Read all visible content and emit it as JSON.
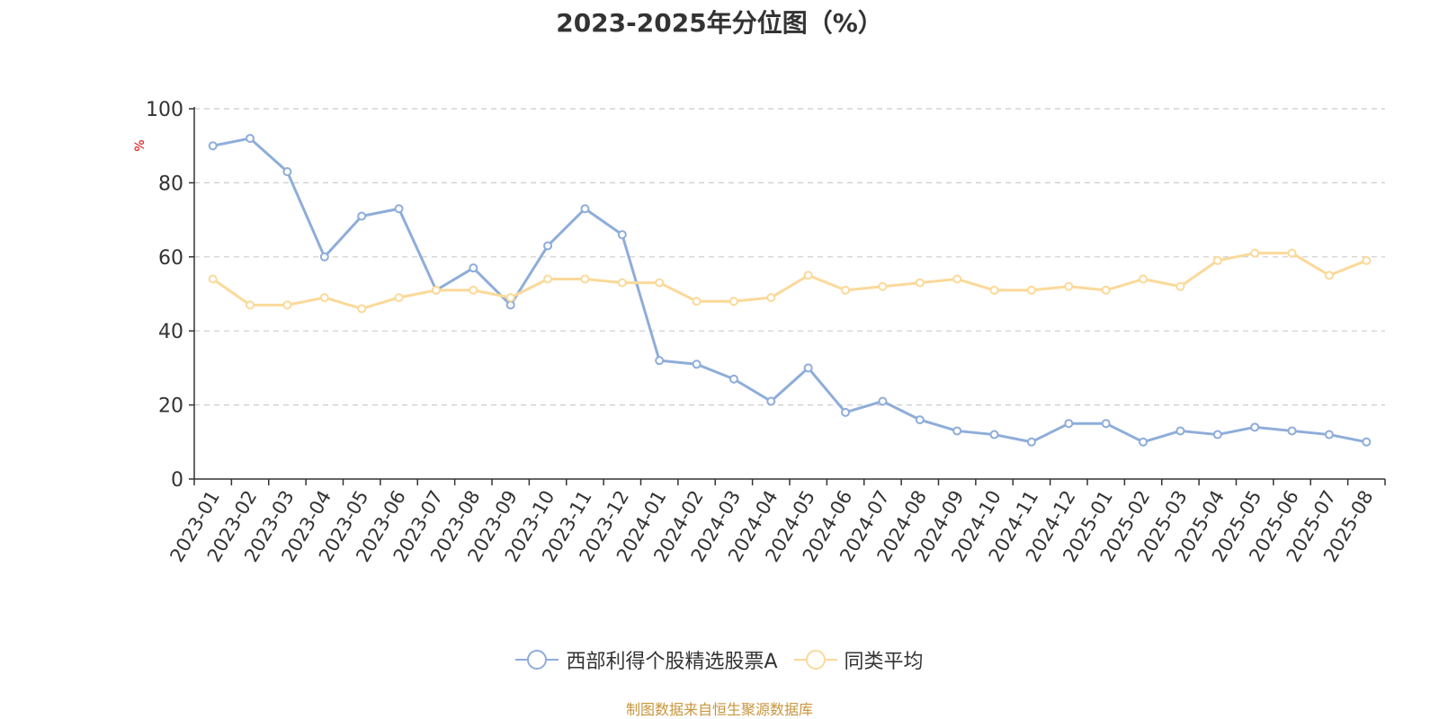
{
  "title": "2023-2025年分位图（%）",
  "source_note": "制图数据来自恒生聚源数据库",
  "chart_data": {
    "type": "line",
    "title": "2023-2025年分位图（%）",
    "ylabel": "%",
    "ylim": [
      0,
      100
    ],
    "yticks": [
      0,
      20,
      40,
      60,
      80,
      100
    ],
    "grid": true,
    "legend_position": "bottom",
    "categories": [
      "2023-01",
      "2023-02",
      "2023-03",
      "2023-04",
      "2023-05",
      "2023-06",
      "2023-07",
      "2023-08",
      "2023-09",
      "2023-10",
      "2023-11",
      "2023-12",
      "2024-01",
      "2024-02",
      "2024-03",
      "2024-04",
      "2024-05",
      "2024-06",
      "2024-07",
      "2024-08",
      "2024-09",
      "2024-10",
      "2024-11",
      "2024-12",
      "2025-01",
      "2025-02",
      "2025-03",
      "2025-04",
      "2025-05",
      "2025-06",
      "2025-07",
      "2025-08"
    ],
    "series": [
      {
        "name": "西部利得个股精选股票A",
        "color": "#8eadd9",
        "values": [
          90,
          92,
          83,
          60,
          71,
          73,
          51,
          57,
          47,
          63,
          73,
          66,
          32,
          31,
          27,
          21,
          30,
          18,
          21,
          16,
          13,
          12,
          10,
          15,
          15,
          10,
          13,
          12,
          14,
          13,
          12,
          10
        ]
      },
      {
        "name": "同类平均",
        "color": "#fbd999",
        "values": [
          54,
          47,
          47,
          49,
          46,
          49,
          51,
          51,
          49,
          54,
          54,
          53,
          53,
          48,
          48,
          49,
          55,
          51,
          52,
          53,
          54,
          51,
          51,
          52,
          51,
          54,
          52,
          59,
          61,
          61,
          55,
          59
        ]
      }
    ]
  }
}
